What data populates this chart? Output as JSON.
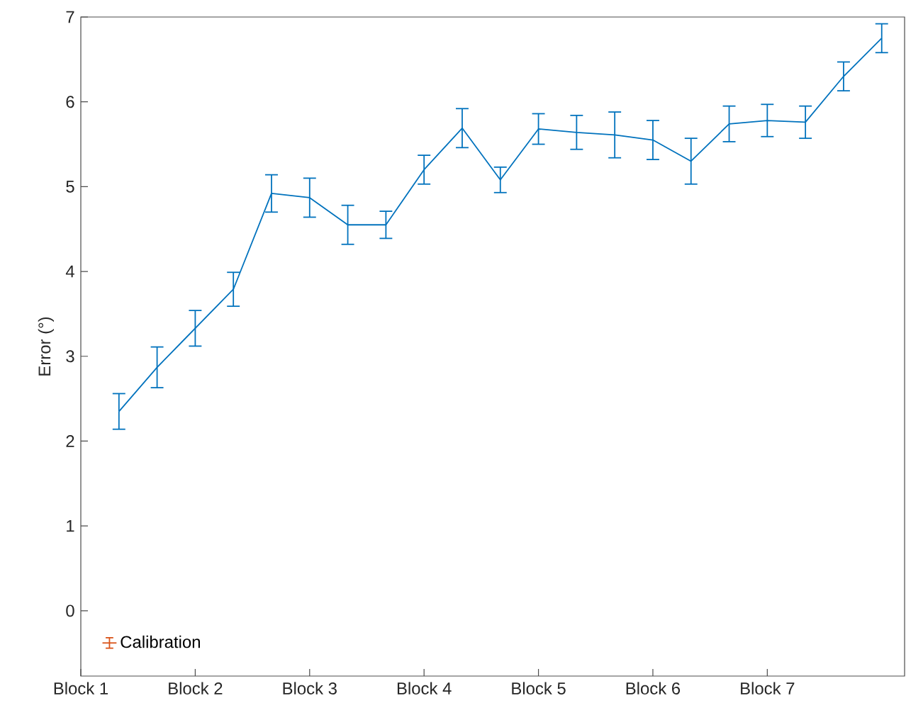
{
  "chart_data": {
    "type": "line",
    "ylabel": "Error (°)",
    "categories": [
      "Block 1",
      null,
      null,
      "Block 2",
      null,
      null,
      "Block 3",
      null,
      null,
      "Block 4",
      null,
      null,
      "Block 5",
      null,
      null,
      "Block 6",
      null,
      null,
      "Block 7",
      null,
      null,
      null
    ],
    "series": [
      {
        "color": "#0072bd",
        "values": [
          null,
          2.35,
          2.87,
          3.33,
          3.79,
          4.92,
          4.87,
          4.55,
          4.55,
          5.2,
          5.69,
          5.08,
          5.68,
          5.64,
          5.61,
          5.55,
          5.3,
          5.74,
          5.78,
          5.76,
          6.3,
          6.75
        ],
        "errors": [
          null,
          0.21,
          0.24,
          0.21,
          0.2,
          0.22,
          0.23,
          0.23,
          0.16,
          0.17,
          0.23,
          0.15,
          0.18,
          0.2,
          0.27,
          0.23,
          0.27,
          0.21,
          0.19,
          0.19,
          0.17,
          0.17
        ]
      },
      {
        "name": "Calibration",
        "color": "#d95319",
        "values": [
          null,
          null,
          null,
          null,
          null,
          null,
          null,
          null,
          null,
          null,
          null,
          null,
          null,
          null,
          null,
          null,
          null,
          null,
          null,
          null,
          null,
          null
        ]
      }
    ],
    "ylim": [
      -0.77,
      7
    ],
    "yticks": [
      0,
      1,
      2,
      3,
      4,
      5,
      6,
      7
    ],
    "legend": "bottom left",
    "grid": false,
    "marker": "none",
    "line_style": "solid"
  }
}
